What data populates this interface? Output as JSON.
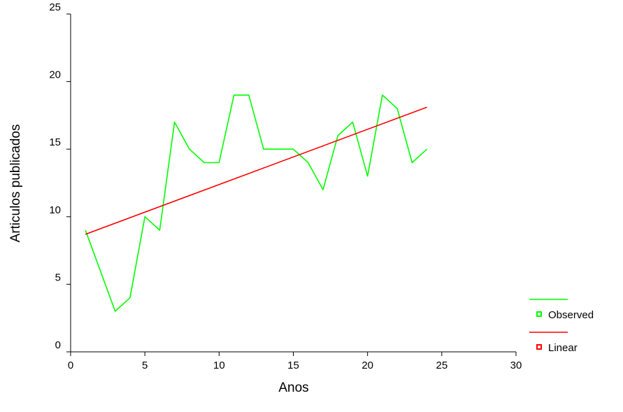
{
  "chart_data": {
    "type": "line",
    "title": "",
    "xlabel": "Anos",
    "ylabel": "Articulos publicados",
    "xlim": [
      0,
      30
    ],
    "ylim": [
      0,
      25
    ],
    "xticks": [
      "0",
      "5",
      "10",
      "15",
      "20",
      "25",
      "30"
    ],
    "yticks": [
      "0",
      "5",
      "10",
      "15",
      "20",
      "25"
    ],
    "grid": false,
    "legend": "bottom-right",
    "series": [
      {
        "name": "Observed",
        "color": "#00ff00",
        "x": [
          1,
          2,
          3,
          4,
          5,
          6,
          7,
          8,
          9,
          10,
          11,
          12,
          13,
          14,
          15,
          16,
          17,
          18,
          19,
          20,
          21,
          22,
          23,
          24
        ],
        "y": [
          9,
          6,
          3,
          4,
          10,
          9,
          17,
          15,
          14,
          14,
          19,
          19,
          15,
          15,
          15,
          14,
          12,
          16,
          17,
          13,
          19,
          18,
          14,
          15
        ]
      },
      {
        "name": "Linear",
        "color": "#ff0000",
        "x": [
          1,
          24
        ],
        "y": [
          8.7,
          18.1
        ]
      }
    ]
  }
}
